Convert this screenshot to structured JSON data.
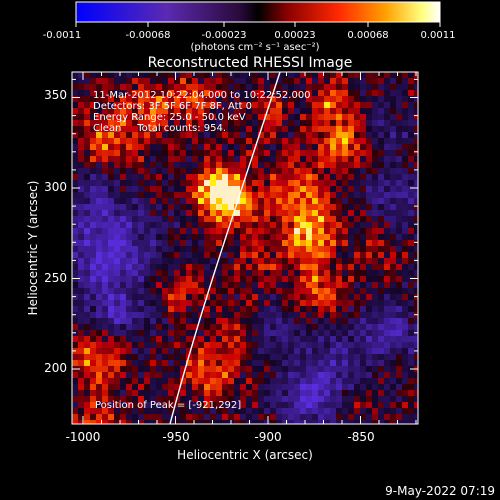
{
  "colorbar": {
    "tick_labels": [
      "-0.0011",
      "-0.00068",
      "-0.00023",
      "0.00023",
      "0.00068",
      "0.0011"
    ],
    "unit_label": "(photons cm⁻² s⁻¹ asec⁻²)",
    "min": -0.0011,
    "max": 0.0011,
    "colormap": "blue-purple-black-red-yellow-white"
  },
  "image": {
    "title": "Reconstructed RHESSI Image",
    "annotation_lines": [
      "11-Mar-2012 10:22:04.000 to 10:22:52.000",
      "Detectors: 3F 5F 6F 7F 8F, Att 0",
      "Energy Range: 25.0 - 50.0 keV",
      "Clean     Total counts: 954."
    ],
    "peak_text": "Position of Peak = [-921,292]",
    "xlabel": "Heliocentric X (arcsec)",
    "ylabel": "Heliocentric Y (arcsec)",
    "x_tick_labels": [
      "-1000",
      "-950",
      "-900",
      "-850"
    ],
    "y_tick_labels": [
      "200",
      "250",
      "300",
      "350"
    ],
    "xlim": [
      -1004,
      -818
    ],
    "ylim": [
      164,
      366
    ],
    "limb_color": "#ffffff",
    "peak_position": [
      -921,
      292
    ]
  },
  "footer": {
    "date_stamp": "9-May-2022 07:19"
  }
}
